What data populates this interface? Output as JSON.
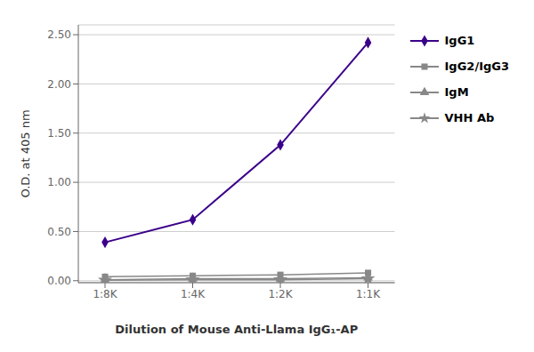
{
  "chart_data": {
    "type": "line",
    "xlabel": "Dilution of Mouse Anti-Llama IgG₁-AP",
    "ylabel": "O.D. at 405 nm",
    "categories": [
      "1:8K",
      "1:4K",
      "1:2K",
      "1:1K"
    ],
    "series": [
      {
        "name": "IgG1",
        "color": "#3b008a",
        "marker": "diamond",
        "values": [
          0.39,
          0.62,
          1.38,
          2.42
        ]
      },
      {
        "name": "IgG2/IgG3",
        "color": "#888888",
        "marker": "square",
        "values": [
          0.04,
          0.05,
          0.06,
          0.08
        ]
      },
      {
        "name": "IgM",
        "color": "#888888",
        "marker": "triangle",
        "values": [
          0.01,
          0.02,
          0.02,
          0.03
        ]
      },
      {
        "name": "VHH Ab",
        "color": "#888888",
        "marker": "star",
        "values": [
          0.005,
          0.01,
          0.01,
          0.02
        ]
      }
    ],
    "ylim": [
      -0.02,
      2.6
    ],
    "yticks": [
      {
        "value": 0.0,
        "label": "0.00"
      },
      {
        "value": 0.5,
        "label": "0.50"
      },
      {
        "value": 1.0,
        "label": "1.00"
      },
      {
        "value": 1.5,
        "label": "1.50"
      },
      {
        "value": 2.0,
        "label": "2.00"
      },
      {
        "value": 2.5,
        "label": "2.50"
      }
    ],
    "grid": true,
    "legend": "right"
  }
}
